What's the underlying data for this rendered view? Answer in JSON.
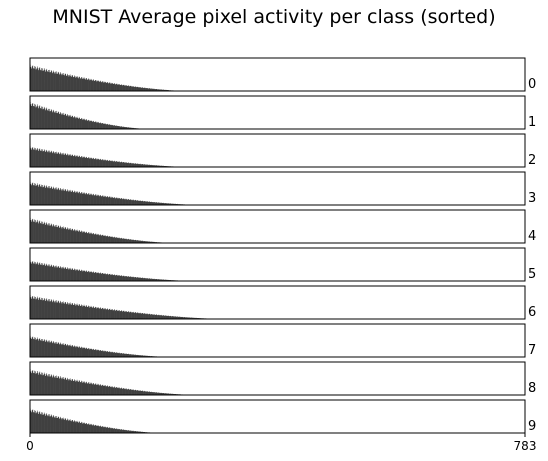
{
  "chart_data": {
    "type": "bar",
    "title": "MNIST Average pixel activity per class (sorted)",
    "xlabel": "",
    "ylabel": "",
    "xlim": [
      0,
      783
    ],
    "x_tick_labels": [
      "0",
      "783"
    ],
    "bar_color": "#404040",
    "grid": false,
    "panels": [
      {
        "label": "0",
        "nonzero_count": 250,
        "max_value": 0.8
      },
      {
        "label": "1",
        "nonzero_count": 189,
        "max_value": 0.82
      },
      {
        "label": "2",
        "nonzero_count": 254,
        "max_value": 0.62
      },
      {
        "label": "3",
        "nonzero_count": 273,
        "max_value": 0.7
      },
      {
        "label": "4",
        "nonzero_count": 229,
        "max_value": 0.76
      },
      {
        "label": "5",
        "nonzero_count": 262,
        "max_value": 0.62
      },
      {
        "label": "6",
        "nonzero_count": 310,
        "max_value": 0.72
      },
      {
        "label": "7",
        "nonzero_count": 224,
        "max_value": 0.64
      },
      {
        "label": "8",
        "nonzero_count": 265,
        "max_value": 0.78
      },
      {
        "label": "9",
        "nonzero_count": 210,
        "max_value": 0.74
      }
    ]
  }
}
